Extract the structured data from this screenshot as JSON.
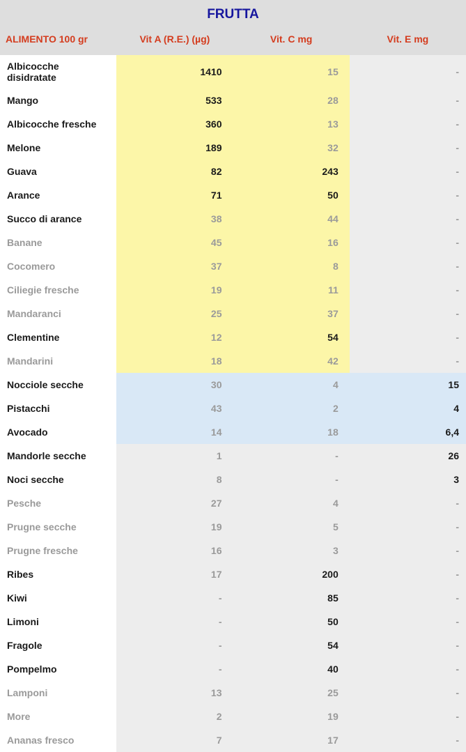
{
  "title": "FRUTTA",
  "columns": {
    "name": "ALIMENTO 100 gr",
    "vita": "Vit A (R.E.) (µg)",
    "vitc": "Vit. C mg",
    "vite": "Vit. E mg"
  },
  "colors": {
    "header_bg": "#dedede",
    "title_color": "#16169e",
    "header_text": "#d43c1e",
    "bold_text": "#1a1a1a",
    "light_text": "#9a9a9a",
    "hl_yellow": "#fcf6a8",
    "hl_blue": "#d9e8f6",
    "row_gray": "#ededed",
    "row_white": "#ffffff"
  },
  "rows": [
    {
      "name": "Albicocche disidratate",
      "vita": "1410",
      "vitc": "15",
      "vite": "-",
      "name_style": "bold",
      "vita_style": "bold",
      "vitc_style": "light",
      "vite_style": "light",
      "name_bg": "white",
      "vita_bg": "yellow",
      "vitc_bg": "yellow",
      "vite_bg": "gray"
    },
    {
      "name": "Mango",
      "vita": "533",
      "vitc": "28",
      "vite": "-",
      "name_style": "bold",
      "vita_style": "bold",
      "vitc_style": "light",
      "vite_style": "light",
      "name_bg": "white",
      "vita_bg": "yellow",
      "vitc_bg": "yellow",
      "vite_bg": "gray"
    },
    {
      "name": "Albicocche fresche",
      "vita": "360",
      "vitc": "13",
      "vite": "-",
      "name_style": "bold",
      "vita_style": "bold",
      "vitc_style": "light",
      "vite_style": "light",
      "name_bg": "white",
      "vita_bg": "yellow",
      "vitc_bg": "yellow",
      "vite_bg": "gray"
    },
    {
      "name": "Melone",
      "vita": "189",
      "vitc": "32",
      "vite": "-",
      "name_style": "bold",
      "vita_style": "bold",
      "vitc_style": "light",
      "vite_style": "light",
      "name_bg": "white",
      "vita_bg": "yellow",
      "vitc_bg": "yellow",
      "vite_bg": "gray"
    },
    {
      "name": "Guava",
      "vita": "82",
      "vitc": "243",
      "vite": "-",
      "name_style": "bold",
      "vita_style": "bold",
      "vitc_style": "bold",
      "vite_style": "light",
      "name_bg": "white",
      "vita_bg": "yellow",
      "vitc_bg": "yellow",
      "vite_bg": "gray"
    },
    {
      "name": "Arance",
      "vita": "71",
      "vitc": "50",
      "vite": "-",
      "name_style": "bold",
      "vita_style": "bold",
      "vitc_style": "bold",
      "vite_style": "light",
      "name_bg": "white",
      "vita_bg": "yellow",
      "vitc_bg": "yellow",
      "vite_bg": "gray"
    },
    {
      "name": "Succo di arance",
      "vita": "38",
      "vitc": "44",
      "vite": "-",
      "name_style": "bold",
      "vita_style": "light",
      "vitc_style": "light",
      "vite_style": "light",
      "name_bg": "white",
      "vita_bg": "yellow",
      "vitc_bg": "yellow",
      "vite_bg": "gray"
    },
    {
      "name": "Banane",
      "vita": "45",
      "vitc": "16",
      "vite": "-",
      "name_style": "light",
      "vita_style": "light",
      "vitc_style": "light",
      "vite_style": "light",
      "name_bg": "white",
      "vita_bg": "yellow",
      "vitc_bg": "yellow",
      "vite_bg": "gray"
    },
    {
      "name": "Cocomero",
      "vita": "37",
      "vitc": "8",
      "vite": "-",
      "name_style": "light",
      "vita_style": "light",
      "vitc_style": "light",
      "vite_style": "light",
      "name_bg": "white",
      "vita_bg": "yellow",
      "vitc_bg": "yellow",
      "vite_bg": "gray"
    },
    {
      "name": "Ciliegie fresche",
      "vita": "19",
      "vitc": "11",
      "vite": "-",
      "name_style": "light",
      "vita_style": "light",
      "vitc_style": "light",
      "vite_style": "light",
      "name_bg": "white",
      "vita_bg": "yellow",
      "vitc_bg": "yellow",
      "vite_bg": "gray"
    },
    {
      "name": "Mandaranci",
      "vita": "25",
      "vitc": "37",
      "vite": "-",
      "name_style": "light",
      "vita_style": "light",
      "vitc_style": "light",
      "vite_style": "light",
      "name_bg": "white",
      "vita_bg": "yellow",
      "vitc_bg": "yellow",
      "vite_bg": "gray"
    },
    {
      "name": "Clementine",
      "vita": "12",
      "vitc": "54",
      "vite": "-",
      "name_style": "bold",
      "vita_style": "light",
      "vitc_style": "bold",
      "vite_style": "light",
      "name_bg": "white",
      "vita_bg": "yellow",
      "vitc_bg": "yellow",
      "vite_bg": "gray"
    },
    {
      "name": "Mandarini",
      "vita": "18",
      "vitc": "42",
      "vite": "-",
      "name_style": "light",
      "vita_style": "light",
      "vitc_style": "light",
      "vite_style": "light",
      "name_bg": "white",
      "vita_bg": "yellow",
      "vitc_bg": "yellow",
      "vite_bg": "gray"
    },
    {
      "name": "Nocciole secche",
      "vita": "30",
      "vitc": "4",
      "vite": "15",
      "name_style": "bold",
      "vita_style": "light",
      "vitc_style": "light",
      "vite_style": "bold",
      "name_bg": "white",
      "vita_bg": "blue",
      "vitc_bg": "blue",
      "vite_bg": "blue"
    },
    {
      "name": "Pistacchi",
      "vita": "43",
      "vitc": "2",
      "vite": "4",
      "name_style": "bold",
      "vita_style": "light",
      "vitc_style": "light",
      "vite_style": "bold",
      "name_bg": "white",
      "vita_bg": "blue",
      "vitc_bg": "blue",
      "vite_bg": "blue"
    },
    {
      "name": "Avocado",
      "vita": "14",
      "vitc": "18",
      "vite": "6,4",
      "name_style": "bold",
      "vita_style": "light",
      "vitc_style": "light",
      "vite_style": "bold",
      "name_bg": "white",
      "vita_bg": "blue",
      "vitc_bg": "blue",
      "vite_bg": "blue"
    },
    {
      "name": "Mandorle secche",
      "vita": "1",
      "vitc": "-",
      "vite": "26",
      "name_style": "bold",
      "vita_style": "light",
      "vitc_style": "light",
      "vite_style": "bold",
      "name_bg": "white",
      "vita_bg": "gray",
      "vitc_bg": "gray",
      "vite_bg": "gray"
    },
    {
      "name": "Noci secche",
      "vita": "8",
      "vitc": "-",
      "vite": "3",
      "name_style": "bold",
      "vita_style": "light",
      "vitc_style": "light",
      "vite_style": "bold",
      "name_bg": "white",
      "vita_bg": "gray",
      "vitc_bg": "gray",
      "vite_bg": "gray"
    },
    {
      "name": "Pesche",
      "vita": "27",
      "vitc": "4",
      "vite": "-",
      "name_style": "light",
      "vita_style": "light",
      "vitc_style": "light",
      "vite_style": "light",
      "name_bg": "white",
      "vita_bg": "gray",
      "vitc_bg": "gray",
      "vite_bg": "gray"
    },
    {
      "name": "Prugne secche",
      "vita": "19",
      "vitc": "5",
      "vite": "-",
      "name_style": "light",
      "vita_style": "light",
      "vitc_style": "light",
      "vite_style": "light",
      "name_bg": "white",
      "vita_bg": "gray",
      "vitc_bg": "gray",
      "vite_bg": "gray"
    },
    {
      "name": "Prugne fresche",
      "vita": "16",
      "vitc": "3",
      "vite": "-",
      "name_style": "light",
      "vita_style": "light",
      "vitc_style": "light",
      "vite_style": "light",
      "name_bg": "white",
      "vita_bg": "gray",
      "vitc_bg": "gray",
      "vite_bg": "gray"
    },
    {
      "name": "Ribes",
      "vita": "17",
      "vitc": "200",
      "vite": "-",
      "name_style": "bold",
      "vita_style": "light",
      "vitc_style": "bold",
      "vite_style": "light",
      "name_bg": "white",
      "vita_bg": "gray",
      "vitc_bg": "gray",
      "vite_bg": "gray"
    },
    {
      "name": "Kiwi",
      "vita": "-",
      "vitc": "85",
      "vite": "-",
      "name_style": "bold",
      "vita_style": "light",
      "vitc_style": "bold",
      "vite_style": "light",
      "name_bg": "white",
      "vita_bg": "gray",
      "vitc_bg": "gray",
      "vite_bg": "gray"
    },
    {
      "name": "Limoni",
      "vita": "-",
      "vitc": "50",
      "vite": "-",
      "name_style": "bold",
      "vita_style": "light",
      "vitc_style": "bold",
      "vite_style": "light",
      "name_bg": "white",
      "vita_bg": "gray",
      "vitc_bg": "gray",
      "vite_bg": "gray"
    },
    {
      "name": "Fragole",
      "vita": "-",
      "vitc": "54",
      "vite": "-",
      "name_style": "bold",
      "vita_style": "light",
      "vitc_style": "bold",
      "vite_style": "light",
      "name_bg": "white",
      "vita_bg": "gray",
      "vitc_bg": "gray",
      "vite_bg": "gray"
    },
    {
      "name": "Pompelmo",
      "vita": "-",
      "vitc": "40",
      "vite": "-",
      "name_style": "bold",
      "vita_style": "light",
      "vitc_style": "bold",
      "vite_style": "light",
      "name_bg": "white",
      "vita_bg": "gray",
      "vitc_bg": "gray",
      "vite_bg": "gray"
    },
    {
      "name": "Lamponi",
      "vita": "13",
      "vitc": "25",
      "vite": "-",
      "name_style": "light",
      "vita_style": "light",
      "vitc_style": "light",
      "vite_style": "light",
      "name_bg": "white",
      "vita_bg": "gray",
      "vitc_bg": "gray",
      "vite_bg": "gray"
    },
    {
      "name": "More",
      "vita": "2",
      "vitc": "19",
      "vite": "-",
      "name_style": "light",
      "vita_style": "light",
      "vitc_style": "light",
      "vite_style": "light",
      "name_bg": "white",
      "vita_bg": "gray",
      "vitc_bg": "gray",
      "vite_bg": "gray"
    },
    {
      "name": "Ananas fresco",
      "vita": "7",
      "vitc": "17",
      "vite": "-",
      "name_style": "light",
      "vita_style": "light",
      "vitc_style": "light",
      "vite_style": "light",
      "name_bg": "white",
      "vita_bg": "gray",
      "vitc_bg": "gray",
      "vite_bg": "gray"
    }
  ]
}
